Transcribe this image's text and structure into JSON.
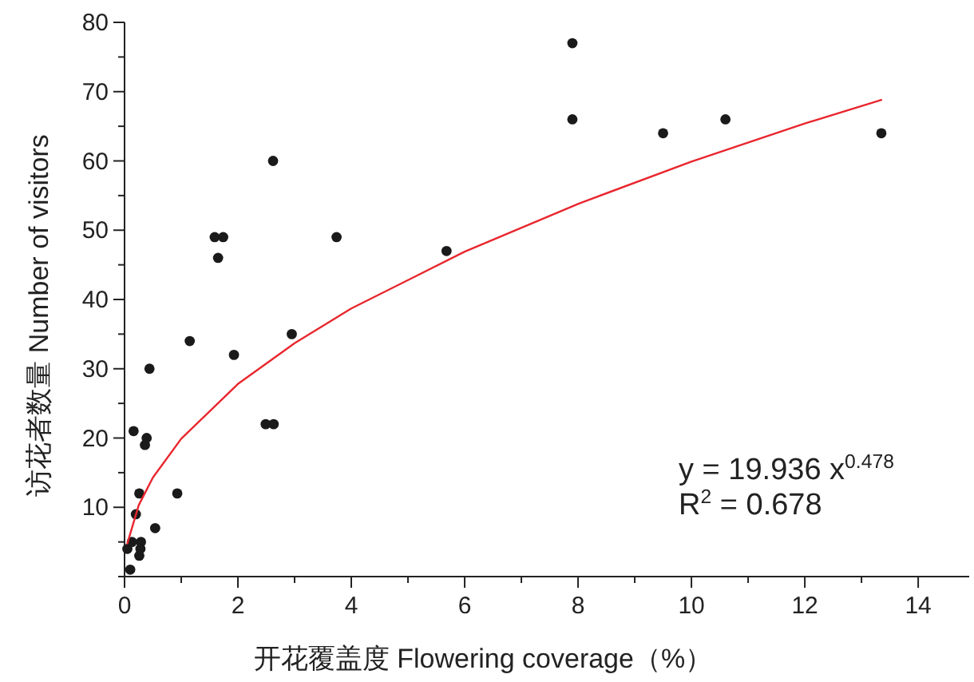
{
  "chart_data": {
    "type": "scatter",
    "xlabel": "开花覆盖度  Flowering coverage（%）",
    "ylabel": "访花者数量  Number of visitors",
    "xlim": [
      0,
      14.9
    ],
    "xticks": [
      0,
      {
        "value": 1,
        "label": null
      },
      2,
      {
        "value": 3,
        "label": null
      },
      4,
      {
        "value": 5,
        "label": null
      },
      6,
      {
        "value": 7,
        "label": null
      },
      8,
      {
        "value": 9,
        "label": null
      },
      10,
      {
        "value": 11,
        "label": null
      },
      12,
      {
        "value": 13,
        "label": null
      },
      14
    ],
    "ylim": [
      0,
      80
    ],
    "yticks": [
      {
        "value": 0,
        "label": null
      },
      {
        "value": 5,
        "label": null
      },
      10,
      {
        "value": 15,
        "label": null
      },
      20,
      {
        "value": 25,
        "label": null
      },
      30,
      {
        "value": 35,
        "label": null
      },
      40,
      {
        "value": 45,
        "label": null
      },
      50,
      {
        "value": 55,
        "label": null
      },
      60,
      {
        "value": 65,
        "label": null
      },
      70,
      {
        "value": 75,
        "label": null
      },
      80
    ],
    "marker": "circle",
    "series": [
      {
        "color": "#1a1a1a",
        "x": [
          7.9,
          7.9,
          9.5,
          10.6,
          13.35,
          2.62,
          1.59,
          1.74,
          1.65,
          3.74,
          5.68,
          1.15,
          1.93,
          2.95,
          0.44,
          0.16,
          0.39,
          0.36,
          2.49,
          2.63,
          0.26,
          0.93,
          0.2,
          0.54,
          0.29,
          0.13,
          0.28,
          0.26,
          0.1,
          0.05
        ],
        "values": [
          77,
          66,
          64,
          66,
          64,
          60,
          49,
          49,
          46,
          49,
          47,
          34,
          32,
          35,
          30,
          21,
          20,
          19,
          22,
          22,
          12,
          12,
          9,
          7,
          5,
          5,
          4,
          3,
          1,
          4
        ]
      },
      {
        "type": "line",
        "color": "#e8262d",
        "line_style": "solid",
        "marker": "none",
        "x": [
          0.05,
          0.25,
          0.5,
          1,
          2,
          3,
          4,
          6,
          8,
          10,
          12,
          13.35
        ],
        "values": [
          4.8,
          10.3,
          14.3,
          19.9,
          27.8,
          33.7,
          38.7,
          46.9,
          53.8,
          59.9,
          65.4,
          68.8
        ]
      }
    ],
    "annotations": [
      "y = 19.936 x$^{0.478}$",
      "R$^{2}$ = 0.678"
    ]
  }
}
